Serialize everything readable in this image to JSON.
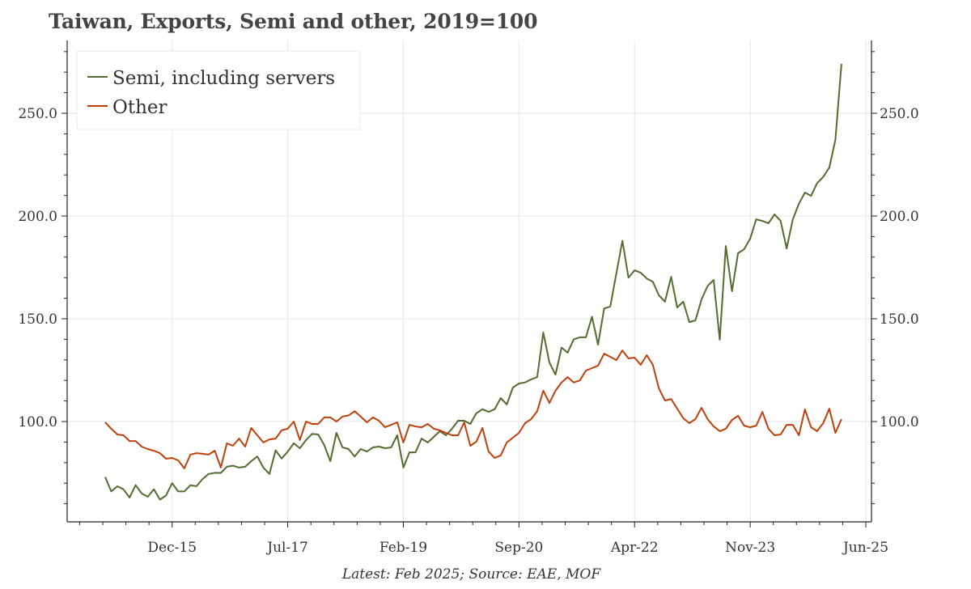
{
  "chart_data": {
    "type": "line",
    "title": "Taiwan, Exports, Semi and other, 2019=100",
    "xlabel": "",
    "ylabel": "",
    "ylim": [
      51,
      285
    ],
    "xlim": [
      "2014-07",
      "2025-08"
    ],
    "grid": true,
    "legend_position": "top-left",
    "y_ticks": [
      100,
      150,
      200,
      250
    ],
    "y_tick_labels": [
      "100.0",
      "150.0",
      "200.0",
      "250.0"
    ],
    "y_axis_sides": [
      "left",
      "right"
    ],
    "x_ticks": [
      "2015-12",
      "2017-07",
      "2019-02",
      "2020-09",
      "2022-04",
      "2023-11",
      "2025-06"
    ],
    "x_tick_labels": [
      "Dec-15",
      "Jul-17",
      "Feb-19",
      "Sep-20",
      "Apr-22",
      "Nov-23",
      "Jun-25"
    ],
    "x": [
      "2015-01",
      "2015-02",
      "2015-03",
      "2015-04",
      "2015-05",
      "2015-06",
      "2015-07",
      "2015-08",
      "2015-09",
      "2015-10",
      "2015-11",
      "2015-12",
      "2016-01",
      "2016-02",
      "2016-03",
      "2016-04",
      "2016-05",
      "2016-06",
      "2016-07",
      "2016-08",
      "2016-09",
      "2016-10",
      "2016-11",
      "2016-12",
      "2017-01",
      "2017-02",
      "2017-03",
      "2017-04",
      "2017-05",
      "2017-06",
      "2017-07",
      "2017-08",
      "2017-09",
      "2017-10",
      "2017-11",
      "2017-12",
      "2018-01",
      "2018-02",
      "2018-03",
      "2018-04",
      "2018-05",
      "2018-06",
      "2018-07",
      "2018-08",
      "2018-09",
      "2018-10",
      "2018-11",
      "2018-12",
      "2019-01",
      "2019-02",
      "2019-03",
      "2019-04",
      "2019-05",
      "2019-06",
      "2019-07",
      "2019-08",
      "2019-09",
      "2019-10",
      "2019-11",
      "2019-12",
      "2020-01",
      "2020-02",
      "2020-03",
      "2020-04",
      "2020-05",
      "2020-06",
      "2020-07",
      "2020-08",
      "2020-09",
      "2020-10",
      "2020-11",
      "2020-12",
      "2021-01",
      "2021-02",
      "2021-03",
      "2021-04",
      "2021-05",
      "2021-06",
      "2021-07",
      "2021-08",
      "2021-09",
      "2021-10",
      "2021-11",
      "2021-12",
      "2022-01",
      "2022-02",
      "2022-03",
      "2022-04",
      "2022-05",
      "2022-06",
      "2022-07",
      "2022-08",
      "2022-09",
      "2022-10",
      "2022-11",
      "2022-12",
      "2023-01",
      "2023-02",
      "2023-03",
      "2023-04",
      "2023-05",
      "2023-06",
      "2023-07",
      "2023-08",
      "2023-09",
      "2023-10",
      "2023-11",
      "2023-12",
      "2024-01",
      "2024-02",
      "2024-03",
      "2024-04",
      "2024-05",
      "2024-06",
      "2024-07",
      "2024-08",
      "2024-09",
      "2024-10",
      "2024-11",
      "2024-12",
      "2025-01",
      "2025-02"
    ],
    "series": [
      {
        "name": "Semi, including servers",
        "color": "#556b2f",
        "values": [
          73,
          66,
          68.5,
          67,
          63,
          69,
          65,
          63.4,
          67,
          62,
          64,
          70,
          66,
          66,
          69,
          68.5,
          72,
          74.5,
          75,
          75,
          78,
          78.5,
          77.6,
          78,
          80.7,
          83,
          77.6,
          74.5,
          86,
          82,
          85.4,
          89.4,
          87,
          91,
          94,
          93.7,
          88.6,
          80.7,
          94.5,
          87.4,
          86.6,
          83,
          86.6,
          85.4,
          87.4,
          87.8,
          87,
          87.4,
          93.3,
          77.6,
          85,
          85,
          91.7,
          89.8,
          92.5,
          95.3,
          93.3,
          96.5,
          100.4,
          100.4,
          98.8,
          104,
          106,
          104.7,
          106,
          111.4,
          108.3,
          116.5,
          118.5,
          119,
          120.5,
          121.6,
          143.3,
          128.7,
          122.8,
          136,
          133.5,
          140,
          141,
          141,
          151,
          137.4,
          155,
          156,
          172,
          188,
          170,
          173.6,
          172.4,
          169.6,
          168,
          161.4,
          158.3,
          170.4,
          155.5,
          158.3,
          148.4,
          149.2,
          159.4,
          166,
          168.9,
          139.8,
          185.4,
          163.4,
          181.9,
          183.8,
          189,
          198.4,
          197.6,
          196.5,
          200.8,
          197.6,
          184.2,
          198.4,
          206,
          211.4,
          209.8,
          216,
          219,
          223.6,
          237,
          274
        ]
      },
      {
        "name": "Other",
        "color": "#c0400c",
        "values": [
          99.6,
          96.5,
          93.7,
          93.3,
          90.5,
          90.5,
          87.8,
          86.6,
          85.8,
          84.6,
          81.9,
          82.3,
          81.1,
          77.2,
          83.9,
          84.6,
          84.3,
          83.9,
          85.8,
          77.6,
          89.4,
          88.2,
          91.7,
          87.8,
          96.9,
          93.3,
          89.8,
          91.3,
          91.7,
          95.7,
          96.5,
          100,
          91,
          100,
          98.8,
          98.8,
          102,
          102,
          100,
          102.4,
          103,
          105,
          102.4,
          99.6,
          102,
          100.4,
          97.2,
          98.4,
          99.6,
          89.8,
          98.4,
          97.6,
          97.2,
          98.8,
          96.5,
          95.7,
          94.5,
          93.3,
          93.3,
          99.6,
          88.2,
          90.2,
          96.9,
          85.4,
          82.3,
          83.5,
          89.8,
          92.1,
          94.5,
          99.2,
          101.2,
          105,
          115,
          109,
          115,
          119,
          121.6,
          119,
          120,
          124.8,
          126,
          127.2,
          133,
          131.5,
          129.9,
          134.6,
          130.7,
          131.1,
          127.6,
          132.3,
          127.6,
          116.1,
          110.2,
          111,
          106.3,
          101.6,
          99.2,
          101.2,
          106.7,
          101.2,
          97.6,
          95.3,
          96.5,
          100.8,
          102.8,
          98,
          97.2,
          98,
          104.7,
          96.5,
          93.3,
          93.7,
          98.4,
          98.4,
          93.3,
          105.9,
          97.2,
          95.3,
          99.2,
          106.3,
          94.5,
          101.2
        ]
      }
    ]
  },
  "colors": {
    "grid": "#e6e6e6",
    "axis": "#222222",
    "text": "#333333"
  },
  "source_note": "Latest: Feb 2025; Source: EAE, MOF"
}
